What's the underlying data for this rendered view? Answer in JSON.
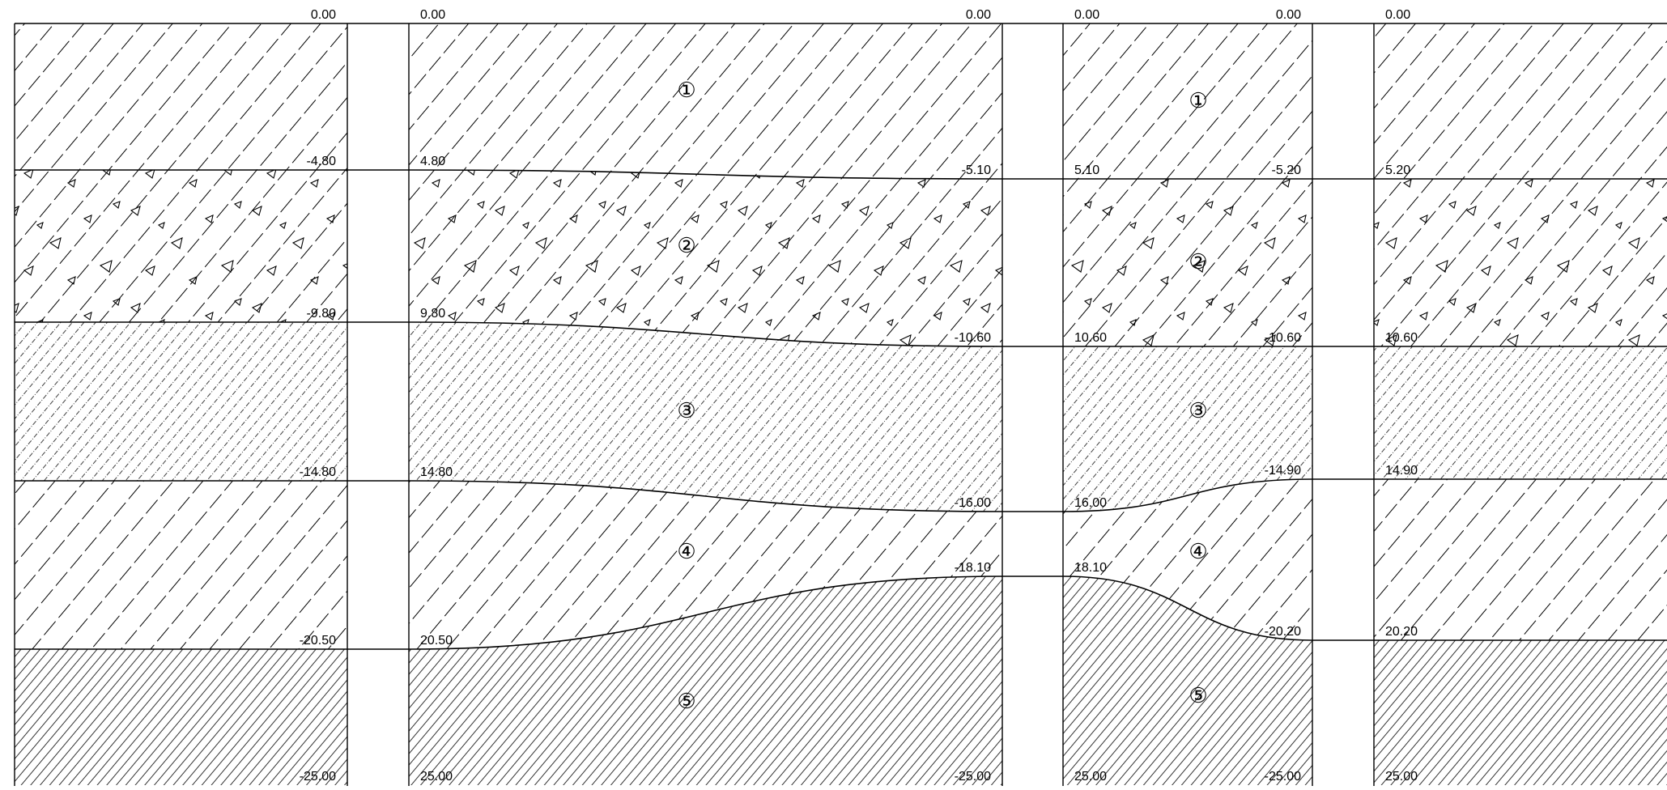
{
  "diagram": {
    "type": "geological-cross-section",
    "layer_numbers": [
      "①",
      "②",
      "③",
      "④",
      "⑤"
    ],
    "layer_patterns": {
      "1": "dashed-diagonal-hatch",
      "2": "dashed-hatch-with-gravel-triangles",
      "3": "dotted-fine-hatch",
      "4": "dashed-diagonal-hatch",
      "5": "dense-diagonal-hatch"
    },
    "line_color": "#000000",
    "background": "#ffffff",
    "sections": [
      {
        "id": "s1",
        "labels": {
          "right": [
            "0.00",
            "-4.80",
            "-9.80",
            "-14.80",
            "-20.50",
            "-25.00"
          ]
        },
        "layer_label_indices": []
      },
      {
        "id": "s2",
        "labels": {
          "left": [
            "0.00",
            "4.80",
            "9.80",
            "14.80",
            "20.50",
            "25.00"
          ],
          "right": [
            "0.00",
            "-5.10",
            "-10.60",
            "-16.00",
            "-18.10",
            "-25.00"
          ]
        },
        "layer_label_indices": [
          0,
          1,
          2,
          3,
          4
        ]
      },
      {
        "id": "s3",
        "labels": {
          "left": [
            "0.00",
            "5.10",
            "10.60",
            "16.00",
            "18.10",
            "25.00"
          ],
          "right": [
            "0.00",
            "-5.20",
            "-10.60",
            "-14.90",
            "-20.20",
            "-25.00"
          ]
        },
        "layer_label_indices": [
          0,
          1,
          2,
          3,
          4
        ]
      },
      {
        "id": "s4",
        "labels": {
          "left": [
            "0.00",
            "5.20",
            "10.60",
            "14.90",
            "20.20",
            "25.00"
          ]
        },
        "layer_label_indices": []
      }
    ]
  }
}
